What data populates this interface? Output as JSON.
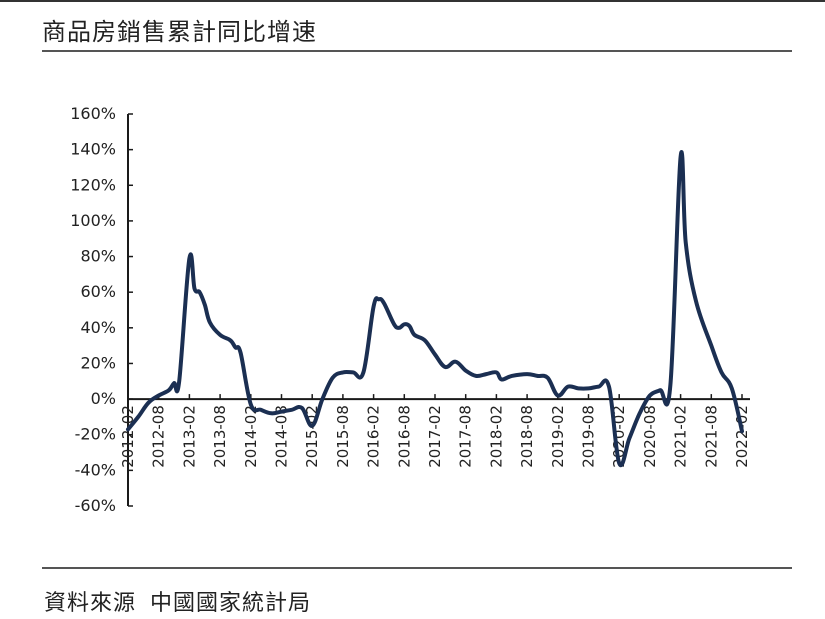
{
  "title": "商品房銷售累計同比增速",
  "source": {
    "label": "資料來源",
    "value": "中國國家統計局"
  },
  "chart_data": {
    "type": "line",
    "title": "商品房銷售累計同比增速",
    "xlabel": "",
    "ylabel": "",
    "ylim": [
      -60,
      160
    ],
    "yticks": [
      160,
      140,
      120,
      100,
      80,
      60,
      40,
      20,
      0,
      -20,
      -40,
      -60
    ],
    "ytick_labels": [
      "160%",
      "140%",
      "120%",
      "100%",
      "80%",
      "60%",
      "40%",
      "20%",
      "0%",
      "-20%",
      "-40%",
      "-60%"
    ],
    "xtick_labels": [
      "2012-02",
      "2012-08",
      "2013-02",
      "2013-08",
      "2014-02",
      "2014-08",
      "2015-02",
      "2015-08",
      "2016-02",
      "2016-08",
      "2017-02",
      "2017-08",
      "2018-02",
      "2018-08",
      "2019-02",
      "2019-08",
      "2020-02",
      "2020-08",
      "2021-02",
      "2021-08",
      "2022-02"
    ],
    "grid": false,
    "series": [
      {
        "color": "#1b2f52",
        "points": [
          [
            "2012-02",
            -17
          ],
          [
            "2012-04",
            -10
          ],
          [
            "2012-06",
            -2
          ],
          [
            "2012-08",
            2
          ],
          [
            "2012-10",
            5
          ],
          [
            "2012-11",
            9
          ],
          [
            "2012-12",
            10
          ],
          [
            "2013-02",
            79
          ],
          [
            "2013-03",
            62
          ],
          [
            "2013-04",
            60
          ],
          [
            "2013-05",
            53
          ],
          [
            "2013-06",
            43
          ],
          [
            "2013-08",
            36
          ],
          [
            "2013-10",
            33
          ],
          [
            "2013-11",
            29
          ],
          [
            "2013-12",
            26
          ],
          [
            "2014-02",
            -3
          ],
          [
            "2014-04",
            -6
          ],
          [
            "2014-06",
            -8
          ],
          [
            "2014-08",
            -7
          ],
          [
            "2014-10",
            -6
          ],
          [
            "2014-12",
            -5
          ],
          [
            "2015-02",
            -15
          ],
          [
            "2015-04",
            0
          ],
          [
            "2015-06",
            12
          ],
          [
            "2015-08",
            15
          ],
          [
            "2015-10",
            15
          ],
          [
            "2015-12",
            15
          ],
          [
            "2016-02",
            52
          ],
          [
            "2016-03",
            56
          ],
          [
            "2016-04",
            54
          ],
          [
            "2016-06",
            42
          ],
          [
            "2016-07",
            40
          ],
          [
            "2016-08",
            42
          ],
          [
            "2016-09",
            41
          ],
          [
            "2016-10",
            36
          ],
          [
            "2016-12",
            33
          ],
          [
            "2017-02",
            25
          ],
          [
            "2017-04",
            18
          ],
          [
            "2017-06",
            21
          ],
          [
            "2017-08",
            16
          ],
          [
            "2017-10",
            13
          ],
          [
            "2017-12",
            14
          ],
          [
            "2018-02",
            15
          ],
          [
            "2018-03",
            11
          ],
          [
            "2018-05",
            13
          ],
          [
            "2018-08",
            14
          ],
          [
            "2018-10",
            13
          ],
          [
            "2018-12",
            12
          ],
          [
            "2019-02",
            2
          ],
          [
            "2019-04",
            7
          ],
          [
            "2019-06",
            6
          ],
          [
            "2019-08",
            6
          ],
          [
            "2019-10",
            7
          ],
          [
            "2019-12",
            7
          ],
          [
            "2020-02",
            -36
          ],
          [
            "2020-04",
            -22
          ],
          [
            "2020-06",
            -8
          ],
          [
            "2020-08",
            2
          ],
          [
            "2020-10",
            5
          ],
          [
            "2020-12",
            8
          ],
          [
            "2021-02",
            136
          ],
          [
            "2021-03",
            88
          ],
          [
            "2021-05",
            55
          ],
          [
            "2021-08",
            30
          ],
          [
            "2021-10",
            15
          ],
          [
            "2021-12",
            6
          ],
          [
            "2022-02",
            -18
          ]
        ]
      }
    ]
  }
}
